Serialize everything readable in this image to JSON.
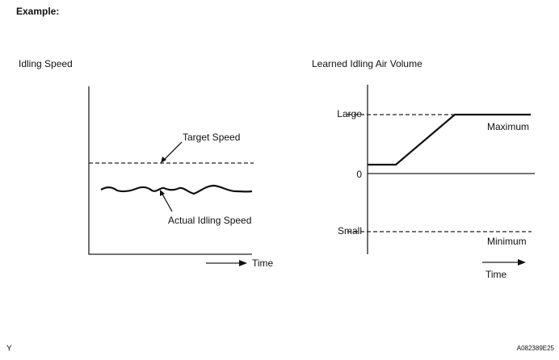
{
  "header": {
    "title": "Example:"
  },
  "left_panel": {
    "title": "Idling Speed",
    "target_label": "Target Speed",
    "actual_label": "Actual Idling Speed",
    "x_label": "Time"
  },
  "right_panel": {
    "title": "Learned Idling Air Volume",
    "levels": [
      "Large",
      "0",
      "Small"
    ],
    "max_label": "Maximum",
    "min_label": "Minimum",
    "x_label": "Time"
  },
  "footer": {
    "left": "Y",
    "code": "A082389E25"
  }
}
